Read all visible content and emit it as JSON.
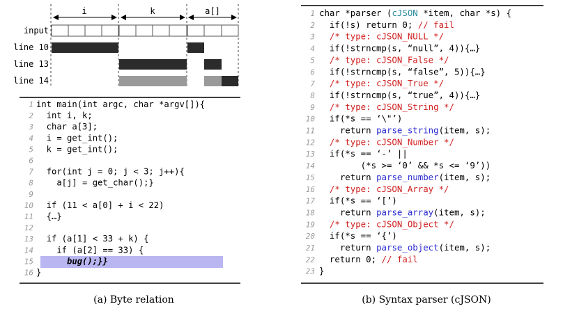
{
  "left_panel": {
    "caption": "(a) Byte relation",
    "var_labels": [
      "i",
      "k",
      "a[]"
    ],
    "row_labels": [
      "input",
      "line 10",
      "line 13",
      "line 14"
    ],
    "code": [
      {
        "n": "1",
        "t": "int main(int argc, char *argv[]){"
      },
      {
        "n": "2",
        "t": "  int i, k;"
      },
      {
        "n": "3",
        "t": "  char a[3];"
      },
      {
        "n": "4",
        "t": "  i = get_int();"
      },
      {
        "n": "5",
        "t": "  k = get_int();"
      },
      {
        "n": "6",
        "t": ""
      },
      {
        "n": "7",
        "t": "  for(int j = 0; j < 3; j++){"
      },
      {
        "n": "8",
        "t": "    a[j] = get_char();}"
      },
      {
        "n": "9",
        "t": ""
      },
      {
        "n": "10",
        "t": "  if (11 < a[0] + i < 22)"
      },
      {
        "n": "11",
        "t": "  {…}"
      },
      {
        "n": "12",
        "t": ""
      },
      {
        "n": "13",
        "t": "  if (a[1] < 33 + k) {"
      },
      {
        "n": "14",
        "t": "    if (a[2] == 33) {"
      },
      {
        "n": "15",
        "t": "      bug();}}"
      },
      {
        "n": "16",
        "t": "}"
      }
    ],
    "highlight_color": "#b9b6f2"
  },
  "right_panel": {
    "caption": "(b) Syntax parser (cJSON)",
    "line_numbers": [
      "1",
      "2",
      "3",
      "4",
      "5",
      "6",
      "7",
      "8",
      "9",
      "10",
      "11",
      "12",
      "13",
      "14",
      "15",
      "16",
      "17",
      "18",
      "19",
      "20",
      "21",
      "22",
      "23"
    ],
    "code_lines": [
      [
        {
          "t": "char *parser ("
        },
        {
          "t": "cJSON",
          "c": "ty"
        },
        {
          "t": " *item, "
        },
        {
          "t": "char",
          "c": ""
        },
        {
          "t": " *s) {"
        }
      ],
      [
        {
          "t": "  if(!s) return 0; "
        },
        {
          "t": "// fail",
          "c": "cmt"
        }
      ],
      [
        {
          "t": "  /* type: cJSON_NULL */",
          "c": "cmt"
        }
      ],
      [
        {
          "t": "  if(!strncmp(s, “null”, 4)){…}"
        }
      ],
      [
        {
          "t": "  /* type: cJSON_False */",
          "c": "cmt"
        }
      ],
      [
        {
          "t": "  if(!strncmp(s, “false”, 5)){…}"
        }
      ],
      [
        {
          "t": "  /* type: cJSON_True */",
          "c": "cmt"
        }
      ],
      [
        {
          "t": "  if(!strncmp(s, “true”, 4)){…}"
        }
      ],
      [
        {
          "t": "  /* type: cJSON_String */",
          "c": "cmt"
        }
      ],
      [
        {
          "t": "  if(*s == ‘\\\"’)"
        }
      ],
      [
        {
          "t": "    return "
        },
        {
          "t": "parse_string",
          "c": "fn"
        },
        {
          "t": "(item, s);"
        }
      ],
      [
        {
          "t": "  /* type: cJSON_Number */",
          "c": "cmt"
        }
      ],
      [
        {
          "t": "  if(*s == ‘-’ ||"
        }
      ],
      [
        {
          "t": "        (*s >= ‘0’ && *s <= ‘9’))"
        }
      ],
      [
        {
          "t": "    return "
        },
        {
          "t": "parse_number",
          "c": "fn"
        },
        {
          "t": "(item, s);"
        }
      ],
      [
        {
          "t": "  /* type: cJSON_Array */",
          "c": "cmt"
        }
      ],
      [
        {
          "t": "  if(*s == ‘[’)"
        }
      ],
      [
        {
          "t": "    return "
        },
        {
          "t": "parse_array",
          "c": "fn"
        },
        {
          "t": "(item, s);"
        }
      ],
      [
        {
          "t": "  /* type: cJSON_Object */",
          "c": "cmt"
        }
      ],
      [
        {
          "t": "  if(*s == ‘{’)"
        }
      ],
      [
        {
          "t": "    return "
        },
        {
          "t": "parse_object",
          "c": "fn"
        },
        {
          "t": "(item, s);"
        }
      ],
      [
        {
          "t": "  return 0; "
        },
        {
          "t": "// fail",
          "c": "cmt"
        }
      ],
      [
        {
          "t": "}"
        }
      ]
    ]
  }
}
